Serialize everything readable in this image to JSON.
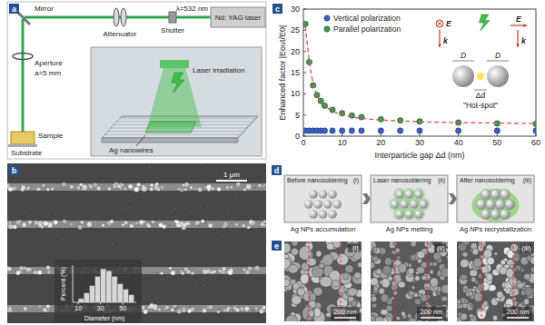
{
  "panels": {
    "a": {
      "label": "a",
      "laser": "Nd: YAG laser",
      "wavelength": "λ=532 nm",
      "shutter": "Shutter",
      "attenuator": "Attenuator",
      "mirror": "Mirror",
      "aperture": "Aperture",
      "aperture_size": "a=5 mm",
      "sample": "Sample",
      "substrate": "Substrate",
      "irradiation": "Laser irradiation",
      "nanowires": "Ag nanowires"
    },
    "b": {
      "label": "b",
      "scale_bar": "1 μm"
    },
    "c": {
      "label": "c",
      "inset": {
        "field_vertical": "E",
        "wavevector_vertical": "k",
        "field_parallel": "E",
        "wavevector_parallel": "k",
        "diameter_left": "D",
        "diameter_right": "D",
        "gap": "Δd",
        "hot_spot": "\"Hot-spot\""
      }
    },
    "d": {
      "label": "d",
      "steps": [
        {
          "title": "Before nanosoldering",
          "index": "(i)",
          "caption": "Ag NPs accumulation"
        },
        {
          "title": "Laser nanosoldering",
          "index": "(ii)",
          "caption": "Ag NPs melting"
        },
        {
          "title": "After nanosoldering",
          "index": "(iii)",
          "caption": "Ag NPs recrystallization"
        }
      ]
    },
    "e": {
      "label": "e",
      "images": [
        {
          "index": "(i)",
          "scale_bar": "200 nm"
        },
        {
          "index": "(ii)",
          "scale_bar": "200 nm"
        },
        {
          "index": "(iii)",
          "scale_bar": "200 nm"
        }
      ]
    }
  },
  "chart_data": [
    {
      "type": "scatter",
      "x_label": "Interparticle gap Δd (nm)",
      "y_label": "Enhanced factor |Eout/E0|",
      "x": [
        0.5,
        1.5,
        2.5,
        3.5,
        4.5,
        5.5,
        7.5,
        10,
        12.5,
        15,
        20,
        25,
        30,
        40,
        50,
        60
      ],
      "series": [
        {
          "name": "Vertical polarization",
          "color": "#3b5fc8",
          "marker": "circle",
          "values": [
            1.3,
            1.3,
            1.3,
            1.3,
            1.3,
            1.3,
            1.3,
            1.3,
            1.3,
            1.3,
            1.3,
            1.3,
            1.3,
            1.3,
            1.3,
            1.3
          ]
        },
        {
          "name": "Parallel polarization",
          "color": "#3d9a4c",
          "marker": "circle",
          "values": [
            26.5,
            17.5,
            12,
            9.7,
            8.3,
            7.2,
            6.2,
            5.4,
            4.9,
            4.5,
            4,
            3.7,
            3.5,
            3.2,
            3.0,
            2.9
          ]
        },
        {
          "type": "line",
          "line_style": "dashed",
          "color": "#d9534f",
          "values": [
            26,
            17.8,
            12.3,
            9.6,
            8.1,
            7.1,
            5.9,
            5.0,
            4.5,
            4.2,
            3.8,
            3.6,
            3.4,
            3.2,
            3.1,
            3.0
          ]
        }
      ],
      "xlim": [
        0,
        60
      ],
      "xticks": [
        0,
        10,
        20,
        30,
        40,
        50,
        60
      ],
      "ylim": [
        0,
        30
      ],
      "yticks": [
        0,
        5,
        10,
        15,
        20,
        25,
        30
      ],
      "grid": false,
      "legend": "top"
    },
    {
      "type": "histogram",
      "x_label": "Diameter (nm)",
      "y_label": "Percent (%)",
      "bins": [
        10,
        15,
        20,
        25,
        30,
        35,
        40,
        45,
        50,
        55,
        60
      ],
      "values": [
        2,
        5,
        9,
        14,
        18,
        17,
        14,
        10,
        7,
        4
      ],
      "color": "#d8d8d8",
      "xlim": [
        5,
        62
      ],
      "xticks": [
        10,
        30,
        50
      ],
      "ylim": [
        0,
        20
      ],
      "tick_labels": "x"
    }
  ]
}
